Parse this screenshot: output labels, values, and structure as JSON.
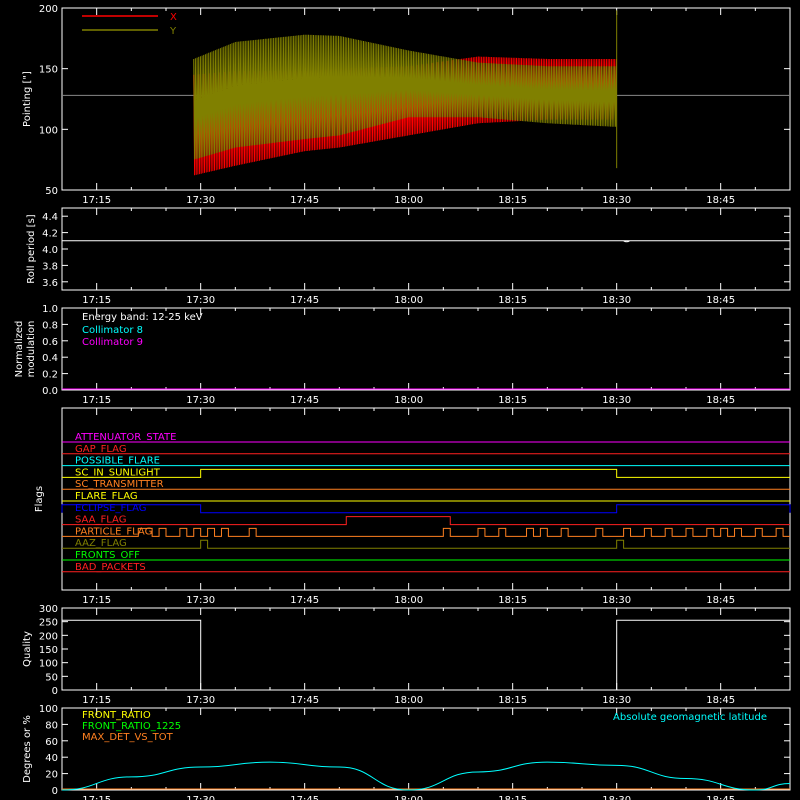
{
  "colors": {
    "background": "#000000",
    "axes": "#ffffff",
    "x_series": "#ff0000",
    "y_series": "#808000",
    "cyan": "#00ffff",
    "magenta": "#ff00ff",
    "green": "#00ff00",
    "orange": "#ff8020",
    "yellow": "#ffff00",
    "blue": "#0000ff",
    "red": "#ff2020"
  },
  "time_ticks": [
    "17:15",
    "17:30",
    "17:45",
    "18:00",
    "18:15",
    "18:30",
    "18:45"
  ],
  "chart_data": [
    {
      "type": "line",
      "ylabel": "Pointing [\"]",
      "ylim": [
        50,
        200
      ],
      "yticks": [
        "50",
        "100",
        "150",
        "200"
      ],
      "xlim": [
        "17:10",
        "18:55"
      ],
      "legend_position": "top-left",
      "series": [
        {
          "name": "X",
          "color": "#ff0000",
          "x": [
            "17:29",
            "17:35",
            "17:45",
            "17:50",
            "18:00",
            "18:10",
            "18:20",
            "18:30"
          ],
          "upper": [
            145,
            148,
            148,
            150,
            152,
            160,
            158,
            158
          ],
          "lower": [
            62,
            70,
            82,
            85,
            95,
            105,
            108,
            108
          ]
        },
        {
          "name": "Y",
          "color": "#808000",
          "x": [
            "17:29",
            "17:35",
            "17:45",
            "17:50",
            "18:00",
            "18:10",
            "18:20",
            "18:30"
          ],
          "upper": [
            158,
            172,
            178,
            177,
            165,
            155,
            152,
            152
          ],
          "lower": [
            75,
            85,
            92,
            95,
            110,
            110,
            105,
            102
          ]
        }
      ],
      "baseline": 128
    },
    {
      "type": "line",
      "ylabel": "Roll period [s]",
      "ylim": [
        3.5,
        4.5
      ],
      "yticks": [
        "3.6",
        "3.8",
        "4.0",
        "4.2",
        "4.4"
      ],
      "series": [
        {
          "x": [
            "17:10",
            "18:55"
          ],
          "y": [
            4.1,
            4.1
          ]
        }
      ]
    },
    {
      "type": "line",
      "ylabel": "Normalized modulation",
      "ylim": [
        0,
        1.0
      ],
      "yticks": [
        "0.0",
        "0.2",
        "0.4",
        "0.6",
        "0.8",
        "1.0"
      ],
      "annotation": "Energy band: 12-25 keV",
      "series": [
        {
          "name": "Collimator 8",
          "color": "#00ffff",
          "x": [
            "17:10",
            "18:55"
          ],
          "y": [
            0,
            0
          ]
        },
        {
          "name": "Collimator 9",
          "color": "#ff00ff",
          "x": [
            "17:10",
            "18:55"
          ],
          "y": [
            0,
            0
          ]
        }
      ]
    },
    {
      "type": "line",
      "ylabel": "Flags",
      "flags": [
        {
          "name": "ATTENUATOR_STATE",
          "color": "#ff00ff",
          "on": []
        },
        {
          "name": "GAP_FLAG",
          "color": "#ff2020",
          "on": []
        },
        {
          "name": "POSSIBLE_FLARE",
          "color": "#00ffff",
          "on": []
        },
        {
          "name": "SC_IN_SUNLIGHT",
          "color": "#ffff00",
          "on": [
            [
              "17:30",
              "18:30"
            ]
          ]
        },
        {
          "name": "SC_TRANSMITTER",
          "color": "#ff8020",
          "on": []
        },
        {
          "name": "FLARE_FLAG",
          "color": "#ffff00",
          "on": []
        },
        {
          "name": "ECLIPSE_FLAG",
          "color": "#0000ff",
          "on": [
            [
              "17:10",
              "17:30"
            ],
            [
              "18:30",
              "18:55"
            ]
          ]
        },
        {
          "name": "SAA_FLAG",
          "color": "#ff2020",
          "on": [
            [
              "17:51",
              "18:06"
            ]
          ]
        },
        {
          "name": "PARTICLE_FLAG",
          "color": "#ff8020",
          "on": [
            [
              "17:21",
              "17:23"
            ],
            [
              "17:24",
              "17:25"
            ],
            [
              "17:27",
              "17:28"
            ],
            [
              "17:29",
              "17:30"
            ],
            [
              "17:31",
              "17:32"
            ],
            [
              "17:33",
              "17:34"
            ],
            [
              "17:37",
              "17:38"
            ],
            [
              "18:05",
              "18:06"
            ],
            [
              "18:10",
              "18:11"
            ],
            [
              "18:13",
              "18:14"
            ],
            [
              "18:17",
              "18:18"
            ],
            [
              "18:19",
              "18:20"
            ],
            [
              "18:22",
              "18:23"
            ],
            [
              "18:27",
              "18:28"
            ],
            [
              "18:31",
              "18:32"
            ],
            [
              "18:34",
              "18:35"
            ],
            [
              "18:37",
              "18:38"
            ],
            [
              "18:40",
              "18:41"
            ],
            [
              "18:43",
              "18:44"
            ],
            [
              "18:45",
              "18:46"
            ],
            [
              "18:47",
              "18:48"
            ],
            [
              "18:50",
              "18:51"
            ],
            [
              "18:53",
              "18:54"
            ]
          ]
        },
        {
          "name": "AAZ_FLAG",
          "color": "#808000",
          "on": [
            [
              "17:30",
              "17:31"
            ],
            [
              "18:30",
              "18:31"
            ]
          ]
        },
        {
          "name": "FRONTS_OFF",
          "color": "#00ff00",
          "on": []
        },
        {
          "name": "BAD_PACKETS",
          "color": "#ff2020",
          "on": []
        }
      ]
    },
    {
      "type": "line",
      "ylabel": "Quality",
      "ylim": [
        0,
        300
      ],
      "yticks": [
        "0",
        "50",
        "100",
        "150",
        "200",
        "250",
        "300"
      ],
      "series": [
        {
          "x": [
            "17:10",
            "17:30",
            "17:30",
            "18:30",
            "18:30",
            "18:55"
          ],
          "y": [
            255,
            255,
            0,
            0,
            255,
            255
          ]
        }
      ]
    },
    {
      "type": "line",
      "ylabel": "Degrees or %",
      "ylim": [
        0,
        100
      ],
      "yticks": [
        "0",
        "20",
        "40",
        "60",
        "80",
        "100"
      ],
      "series": [
        {
          "name": "FRONT_RATIO",
          "color": "#ffff00",
          "x": [],
          "y": []
        },
        {
          "name": "FRONT_RATIO_1225",
          "color": "#00ff00",
          "x": [],
          "y": []
        },
        {
          "name": "MAX_DET_VS_TOT",
          "color": "#ff8020",
          "x": [
            "17:10",
            "18:55"
          ],
          "y": [
            0,
            0
          ]
        },
        {
          "name": "Absolute geomagnetic latitude",
          "color": "#00ffff",
          "x": [
            "17:10",
            "17:20",
            "17:30",
            "17:40",
            "17:50",
            "18:00",
            "18:10",
            "18:20",
            "18:30",
            "18:40",
            "18:50",
            "18:55"
          ],
          "y": [
            0,
            16,
            28,
            34,
            28,
            0,
            22,
            34,
            30,
            14,
            0,
            8
          ]
        }
      ]
    }
  ]
}
